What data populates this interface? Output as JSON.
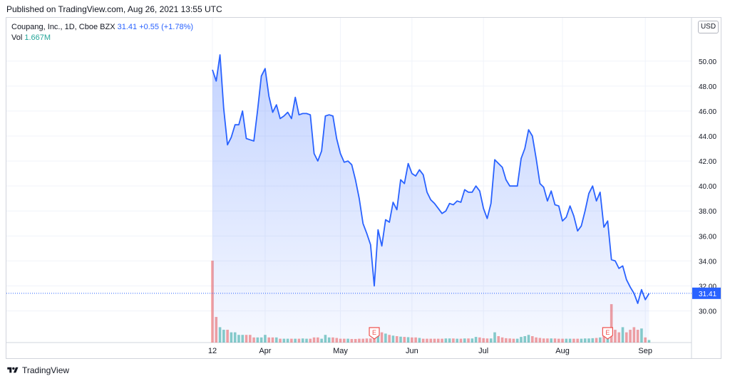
{
  "published": "Published on TradingView.com, Aug 26, 2021 13:55 UTC",
  "legend": {
    "symbol": "Coupang, Inc., 1D, Cboe BZX",
    "last": "31.41",
    "change": "+0.55 (+1.78%)",
    "vol_label": "Vol",
    "vol_value": "1.667M"
  },
  "currency": "USD",
  "price_badge": "31.41",
  "footer_brand": "TradingView",
  "colors": {
    "line": "#2962ff",
    "vol_up": "#26a69a",
    "vol_down": "#ef5350",
    "badge": "#2962ff"
  },
  "chart_data": {
    "type": "area",
    "yticks": [
      30,
      32,
      34,
      36,
      38,
      40,
      42,
      44,
      46,
      48,
      50
    ],
    "ytick_labels": [
      "30.00",
      "32.00",
      "34.00",
      "36.00",
      "38.00",
      "40.00",
      "42.00",
      "44.00",
      "46.00",
      "48.00",
      "50.00"
    ],
    "ylim": [
      28.5,
      52.5
    ],
    "xticks": [
      {
        "label": "12",
        "x": 0
      },
      {
        "label": "Apr",
        "x": 14
      },
      {
        "label": "May",
        "x": 34
      },
      {
        "label": "Jun",
        "x": 53
      },
      {
        "label": "Jul",
        "x": 72
      },
      {
        "label": "Aug",
        "x": 93
      },
      {
        "label": "Sep",
        "x": 115
      }
    ],
    "xlim": [
      -1,
      125
    ],
    "last_price": 31.41,
    "close": [
      49.3,
      48.4,
      50.5,
      46.2,
      43.3,
      43.9,
      44.9,
      44.9,
      46.0,
      43.8,
      43.7,
      43.6,
      46.1,
      48.8,
      49.4,
      47.2,
      45.9,
      46.5,
      45.4,
      45.6,
      45.9,
      45.4,
      47.1,
      45.7,
      45.8,
      45.8,
      45.7,
      42.6,
      42.0,
      42.8,
      45.6,
      45.7,
      45.6,
      43.8,
      42.6,
      41.9,
      42.0,
      41.7,
      40.5,
      39.0,
      37.0,
      36.2,
      35.3,
      32.0,
      36.5,
      35.2,
      37.3,
      37.1,
      38.7,
      38.1,
      40.5,
      40.2,
      41.8,
      41.0,
      40.8,
      41.3,
      40.9,
      39.5,
      38.9,
      38.6,
      38.2,
      37.8,
      38.0,
      38.6,
      38.5,
      38.8,
      38.7,
      39.7,
      39.5,
      39.5,
      40.0,
      39.6,
      38.2,
      37.4,
      38.6,
      42.1,
      41.8,
      41.5,
      40.5,
      40.0,
      40.0,
      40.0,
      42.2,
      43.0,
      44.5,
      44.0,
      42.2,
      40.2,
      39.9,
      38.8,
      39.6,
      38.5,
      38.4,
      37.2,
      37.5,
      38.4,
      37.6,
      36.4,
      36.8,
      38.0,
      39.4,
      40.0,
      38.8,
      39.5,
      36.7,
      37.2,
      34.1,
      34.0,
      33.4,
      33.6,
      32.5,
      31.9,
      31.4,
      30.6,
      31.7,
      30.9,
      31.4
    ],
    "volume": [
      32,
      10,
      6,
      5,
      5,
      4,
      4,
      3,
      3,
      3,
      3,
      2,
      2,
      2,
      3,
      2,
      2,
      2,
      1.5,
      1.5,
      1.5,
      1.5,
      1.5,
      1.5,
      1.6,
      1.5,
      1.5,
      2,
      2,
      1.5,
      3,
      2,
      2,
      1.8,
      1.5,
      1.5,
      1.5,
      1.4,
      1.4,
      1.5,
      1.5,
      1.6,
      1.6,
      1.8,
      4.5,
      4,
      3.5,
      3,
      2.7,
      2.5,
      2.3,
      2.2,
      2.1,
      2,
      2,
      1.8,
      1.5,
      1.5,
      1.5,
      1.5,
      1.5,
      1.5,
      1.6,
      1.6,
      1.6,
      1.5,
      1.5,
      1.6,
      1.6,
      1.6,
      2.2,
      2,
      1.7,
      1.6,
      1.6,
      4,
      2.5,
      2,
      1.7,
      1.6,
      1.5,
      1.5,
      2.2,
      2.5,
      3,
      2.5,
      2,
      1.8,
      1.6,
      1.6,
      1.6,
      1.6,
      1.5,
      1.5,
      1.5,
      1.5,
      1.5,
      1.5,
      1.5,
      1.6,
      1.6,
      1.7,
      1.8,
      2,
      3,
      4.5,
      15,
      5,
      4,
      6,
      4,
      5,
      6,
      5,
      5.5,
      2,
      1
    ],
    "volume_up": [
      false,
      false,
      true,
      true,
      false,
      true,
      true,
      true,
      true,
      false,
      false,
      false,
      true,
      true,
      true,
      false,
      false,
      true,
      false,
      true,
      true,
      false,
      true,
      false,
      true,
      true,
      false,
      false,
      false,
      true,
      true,
      true,
      false,
      false,
      false,
      false,
      true,
      false,
      false,
      false,
      false,
      false,
      false,
      false,
      true,
      false,
      true,
      false,
      true,
      false,
      true,
      false,
      true,
      false,
      false,
      true,
      false,
      false,
      false,
      false,
      false,
      false,
      true,
      true,
      false,
      true,
      false,
      true,
      false,
      true,
      true,
      false,
      false,
      false,
      true,
      true,
      false,
      false,
      false,
      false,
      false,
      true,
      true,
      true,
      true,
      false,
      false,
      false,
      false,
      false,
      true,
      false,
      false,
      false,
      true,
      true,
      false,
      false,
      true,
      true,
      true,
      true,
      false,
      true,
      false,
      true,
      false,
      false,
      false,
      true,
      false,
      false,
      false,
      false,
      true,
      false,
      true
    ],
    "earnings_markers": [
      {
        "x": 43,
        "label": "E"
      },
      {
        "x": 105,
        "label": "E"
      }
    ]
  }
}
